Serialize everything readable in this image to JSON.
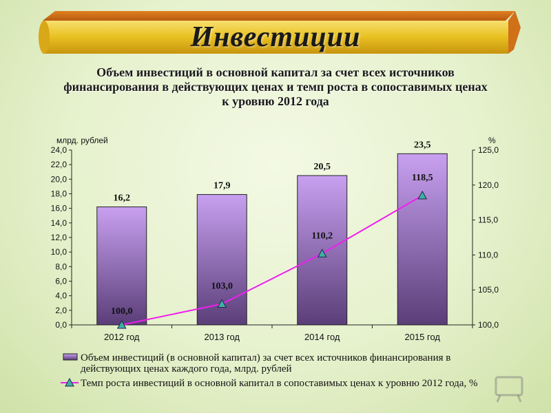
{
  "banner": {
    "title": "Инвестиции"
  },
  "subtitle": [
    "Объем инвестиций  в основной капитал за счет всех источников",
    "финансирования  в действующих ценах и темп роста в сопоставимых ценах",
    "к уровню 2012 года"
  ],
  "colors": {
    "bar_top": "#c8a0f0",
    "bar_bottom": "#5a3e78",
    "line": "#ee20ee",
    "marker": "#3cb49c",
    "banner_gold": "#f0c830"
  },
  "chart_data": {
    "type": "bar",
    "title": "",
    "categories": [
      "2012 год",
      "2013 год",
      "2014 год",
      "2015 год"
    ],
    "y_left": {
      "label": "млрд. рублей",
      "range": [
        0,
        24
      ],
      "ticks": [
        "0,0",
        "2,0",
        "4,0",
        "6,0",
        "8,0",
        "10,0",
        "12,0",
        "14,0",
        "16,0",
        "18,0",
        "20,0",
        "22,0",
        "24,0"
      ]
    },
    "y_right": {
      "label": "%",
      "range": [
        100,
        125
      ],
      "ticks": [
        "100,0",
        "105,0",
        "110,0",
        "115,0",
        "120,0",
        "125,0"
      ]
    },
    "series": [
      {
        "name": "Объем инвестиций (в основной капитал) за счет всех источников финансирования в действующих ценах каждого года, млрд. рублей",
        "legend_lines": [
          "Объем инвестиций (в основной капитал) за счет всех источников финансирования в",
          "действующих ценах каждого года, млрд. рублей"
        ],
        "type": "bar",
        "axis": "left",
        "values": [
          16.2,
          17.9,
          20.5,
          23.5
        ],
        "labels": [
          "16,2",
          "17,9",
          "20,5",
          "23,5"
        ]
      },
      {
        "name": "Темп роста инвестиций в основной капитал в сопоставимых ценах к уровню 2012 года, %",
        "legend_lines": [
          "Темп роста инвестиций в основной капитал в сопоставимых ценах к уровню 2012 года, %"
        ],
        "type": "line",
        "axis": "right",
        "values": [
          100.0,
          103.0,
          110.2,
          118.5
        ],
        "labels": [
          "100,0",
          "103,0",
          "110,2",
          "118,5"
        ]
      }
    ],
    "grid": false,
    "legend_position": "bottom"
  }
}
